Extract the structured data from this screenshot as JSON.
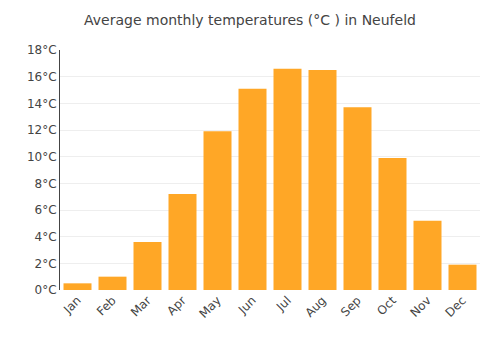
{
  "chart_data": {
    "type": "bar",
    "title": "Average monthly temperatures (°C ) in Neufeld",
    "categories": [
      "Jan",
      "Feb",
      "Mar",
      "Apr",
      "May",
      "Jun",
      "Jul",
      "Aug",
      "Sep",
      "Oct",
      "Nov",
      "Dec"
    ],
    "values": [
      0.5,
      1.0,
      3.6,
      7.2,
      11.9,
      15.1,
      16.6,
      16.5,
      13.7,
      9.9,
      5.2,
      1.9
    ],
    "color": "#FFA726",
    "ylim": [
      0,
      18
    ],
    "yticks": [
      {
        "value": 0,
        "label": "0°C"
      },
      {
        "value": 2,
        "label": "2°C"
      },
      {
        "value": 4,
        "label": "4°C"
      },
      {
        "value": 6,
        "label": "6°C"
      },
      {
        "value": 8,
        "label": "8°C"
      },
      {
        "value": 10,
        "label": "10°C"
      },
      {
        "value": 12,
        "label": "12°C"
      },
      {
        "value": 14,
        "label": "14°C"
      },
      {
        "value": 16,
        "label": "16°C"
      },
      {
        "value": 18,
        "label": "18°C"
      }
    ],
    "grid": true
  }
}
